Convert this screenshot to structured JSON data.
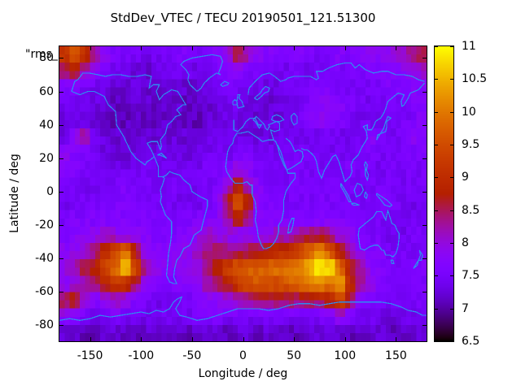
{
  "title": "StdDev_VTEC / TECU 20190501_121.51300",
  "overlay_label": "\"rms_",
  "axes": {
    "x": {
      "label": "Longitude / deg",
      "ticks": [
        -150,
        -100,
        -50,
        0,
        50,
        100,
        150
      ],
      "range": [
        -180,
        180
      ]
    },
    "y": {
      "label": "Latitude / deg",
      "ticks": [
        80,
        60,
        40,
        20,
        0,
        -20,
        -40,
        -60,
        -80
      ],
      "range": [
        -90,
        90
      ]
    }
  },
  "colorbar": {
    "min": 6.5,
    "max": 11,
    "ticks": [
      11,
      10.5,
      10,
      9.5,
      9,
      8.5,
      8,
      7.5,
      7,
      6.5
    ],
    "palette": "gnuplot default pm3d (black-blue-purple-red-orange-yellow)"
  },
  "colors": {
    "background": "#ffffff",
    "coastline": "#2e8cf0",
    "border": "#000000",
    "text": "#000000"
  },
  "map_overlay": "world-coastlines",
  "chart_data": {
    "type": "heatmap",
    "title": "StdDev_VTEC / TECU 20190501_121.51300",
    "xlabel": "Longitude / deg",
    "ylabel": "Latitude / deg",
    "xlim": [
      -180,
      180
    ],
    "ylim": [
      -90,
      90
    ],
    "zlim": [
      6.5,
      11
    ],
    "units": "TECU",
    "lon_centers": [
      -175,
      -165,
      -155,
      -145,
      -135,
      -125,
      -115,
      -105,
      -95,
      -85,
      -75,
      -65,
      -55,
      -45,
      -35,
      -25,
      -15,
      -5,
      5,
      15,
      25,
      35,
      45,
      55,
      65,
      75,
      85,
      95,
      105,
      115,
      125,
      135,
      145,
      155,
      165,
      175
    ],
    "lat_centers": [
      85,
      75,
      65,
      55,
      45,
      35,
      25,
      15,
      5,
      -5,
      -15,
      -25,
      -35,
      -45,
      -55,
      -65,
      -75,
      -85
    ],
    "values": [
      [
        9.2,
        9.6,
        9.0,
        8.2,
        7.8,
        7.6,
        7.5,
        7.5,
        7.4,
        7.4,
        7.5,
        7.6,
        7.6,
        7.5,
        7.6,
        7.7,
        8.0,
        8.7,
        8.2,
        7.8,
        7.7,
        7.6,
        7.6,
        7.7,
        7.6,
        7.5,
        7.6,
        7.7,
        7.6,
        7.7,
        7.8,
        7.8,
        7.9,
        8.0,
        8.4,
        8.5
      ],
      [
        8.5,
        8.7,
        8.2,
        7.8,
        7.5,
        7.4,
        7.3,
        7.3,
        7.2,
        7.3,
        7.3,
        7.4,
        7.4,
        7.3,
        7.4,
        7.5,
        7.6,
        7.8,
        7.6,
        7.5,
        7.5,
        7.4,
        7.4,
        7.5,
        7.4,
        7.4,
        7.5,
        7.5,
        7.5,
        7.6,
        7.6,
        7.6,
        7.7,
        7.8,
        8.0,
        8.1
      ],
      [
        7.6,
        7.7,
        7.5,
        7.4,
        7.3,
        7.2,
        7.2,
        7.3,
        7.2,
        7.2,
        7.3,
        7.3,
        7.2,
        7.2,
        7.3,
        7.4,
        7.5,
        7.5,
        7.4,
        7.4,
        7.3,
        7.3,
        7.4,
        7.4,
        7.5,
        7.6,
        7.6,
        7.5,
        7.4,
        7.4,
        7.5,
        7.5,
        7.6,
        7.6,
        7.7,
        7.7
      ],
      [
        7.4,
        7.4,
        7.3,
        7.3,
        7.2,
        7.1,
        7.1,
        7.2,
        7.2,
        7.1,
        7.2,
        7.2,
        7.1,
        7.2,
        7.2,
        7.3,
        7.4,
        7.4,
        7.3,
        7.3,
        7.2,
        7.3,
        7.3,
        7.4,
        7.6,
        7.8,
        7.8,
        7.7,
        7.6,
        7.5,
        7.4,
        7.4,
        7.5,
        7.5,
        7.6,
        7.6
      ],
      [
        7.3,
        7.3,
        7.2,
        7.2,
        7.1,
        7.1,
        7.1,
        7.2,
        7.1,
        7.1,
        7.2,
        7.2,
        7.1,
        7.1,
        7.2,
        7.3,
        7.3,
        7.3,
        7.3,
        7.2,
        7.2,
        7.3,
        7.4,
        7.5,
        7.7,
        7.8,
        7.7,
        7.6,
        7.5,
        7.4,
        7.4,
        7.4,
        7.4,
        7.5,
        7.5,
        7.7
      ],
      [
        7.3,
        7.8,
        8.4,
        7.5,
        7.3,
        7.2,
        7.2,
        7.2,
        7.2,
        7.2,
        7.2,
        7.3,
        7.2,
        7.2,
        7.3,
        7.3,
        7.3,
        7.3,
        7.3,
        7.3,
        7.3,
        7.3,
        7.4,
        7.4,
        7.4,
        7.4,
        7.4,
        7.4,
        7.4,
        7.4,
        7.8,
        7.5,
        7.4,
        7.5,
        7.9,
        7.6
      ],
      [
        7.9,
        7.7,
        7.5,
        7.4,
        7.3,
        7.3,
        7.2,
        7.3,
        7.3,
        7.3,
        7.3,
        7.3,
        7.3,
        7.3,
        7.4,
        7.4,
        7.4,
        7.5,
        7.5,
        7.4,
        7.4,
        7.4,
        7.4,
        7.5,
        7.5,
        7.5,
        7.4,
        7.4,
        7.4,
        7.5,
        7.5,
        7.5,
        7.5,
        7.5,
        7.5,
        7.6
      ],
      [
        7.7,
        7.6,
        7.5,
        7.4,
        7.4,
        7.3,
        7.4,
        7.4,
        7.5,
        7.4,
        7.4,
        7.4,
        7.4,
        7.4,
        7.5,
        7.5,
        7.6,
        8.0,
        7.8,
        7.5,
        7.4,
        7.4,
        7.5,
        7.5,
        7.5,
        7.4,
        7.5,
        7.5,
        7.6,
        7.5,
        7.5,
        7.4,
        7.5,
        7.5,
        7.5,
        7.5
      ],
      [
        7.5,
        7.5,
        7.4,
        7.4,
        7.5,
        7.5,
        7.6,
        7.5,
        7.5,
        7.4,
        7.4,
        7.5,
        7.4,
        7.4,
        7.5,
        7.6,
        8.0,
        8.8,
        8.2,
        7.7,
        7.5,
        7.5,
        7.5,
        7.6,
        7.5,
        7.5,
        7.6,
        7.5,
        7.5,
        7.4,
        7.5,
        7.5,
        7.5,
        7.4,
        7.5,
        7.5
      ],
      [
        7.4,
        7.4,
        7.5,
        7.5,
        7.5,
        7.6,
        7.6,
        7.6,
        7.5,
        7.5,
        7.4,
        7.4,
        7.4,
        7.4,
        7.5,
        7.7,
        8.6,
        9.6,
        8.8,
        7.8,
        7.6,
        7.5,
        7.5,
        7.5,
        7.5,
        7.6,
        7.5,
        7.5,
        7.5,
        7.4,
        7.5,
        7.6,
        7.5,
        7.5,
        7.4,
        7.4
      ],
      [
        7.5,
        7.6,
        7.6,
        7.6,
        7.6,
        7.7,
        7.6,
        7.6,
        7.6,
        7.5,
        7.5,
        7.5,
        7.5,
        7.6,
        7.6,
        7.7,
        8.2,
        8.9,
        8.3,
        7.7,
        7.6,
        7.6,
        7.6,
        7.7,
        7.6,
        7.6,
        7.6,
        7.6,
        7.6,
        7.5,
        7.5,
        7.5,
        7.4,
        7.4,
        7.4,
        7.5
      ],
      [
        7.6,
        7.7,
        7.8,
        7.9,
        8.0,
        7.9,
        7.8,
        7.8,
        7.7,
        7.6,
        7.6,
        7.6,
        7.7,
        7.9,
        8.2,
        8.0,
        7.9,
        7.8,
        7.8,
        7.8,
        7.9,
        8.1,
        8.2,
        8.3,
        8.4,
        8.5,
        8.3,
        7.9,
        7.8,
        7.6,
        7.5,
        7.5,
        7.4,
        7.4,
        7.5,
        7.5
      ],
      [
        7.8,
        7.9,
        8.0,
        8.4,
        9.0,
        9.4,
        10.0,
        8.6,
        7.9,
        7.8,
        7.7,
        7.7,
        7.8,
        8.1,
        8.4,
        8.4,
        8.3,
        8.4,
        8.5,
        8.6,
        8.8,
        8.9,
        9.0,
        9.3,
        9.8,
        10.2,
        9.6,
        8.8,
        8.2,
        7.8,
        7.6,
        7.6,
        7.5,
        7.5,
        7.5,
        7.5
      ],
      [
        8.0,
        8.2,
        8.6,
        8.8,
        9.4,
        9.8,
        10.8,
        9.4,
        8.2,
        7.9,
        7.8,
        7.8,
        7.9,
        8.0,
        8.3,
        8.8,
        9.3,
        9.6,
        9.7,
        9.8,
        9.8,
        9.9,
        10.0,
        10.1,
        10.4,
        10.9,
        10.9,
        9.9,
        8.8,
        8.2,
        7.8,
        7.7,
        7.6,
        7.5,
        7.5,
        7.6
      ],
      [
        7.8,
        8.0,
        8.2,
        8.4,
        8.9,
        9.2,
        9.0,
        8.5,
        7.9,
        7.7,
        7.6,
        7.6,
        7.7,
        7.9,
        8.2,
        8.5,
        8.8,
        9.2,
        9.6,
        9.7,
        9.6,
        9.5,
        9.7,
        9.9,
        10.0,
        10.3,
        9.9,
        10.4,
        8.9,
        8.3,
        7.9,
        7.6,
        7.5,
        7.5,
        7.5,
        7.5
      ],
      [
        8.6,
        8.8,
        8.0,
        7.7,
        7.9,
        8.1,
        7.9,
        7.6,
        7.5,
        7.4,
        7.4,
        7.5,
        7.5,
        7.6,
        7.7,
        7.8,
        8.0,
        8.2,
        8.3,
        8.4,
        8.5,
        8.6,
        8.5,
        8.4,
        8.5,
        8.6,
        8.8,
        9.4,
        8.6,
        7.8,
        7.6,
        7.5,
        7.4,
        7.4,
        7.5,
        7.5
      ],
      [
        7.8,
        7.7,
        7.5,
        7.4,
        7.5,
        7.6,
        7.5,
        7.4,
        7.4,
        7.4,
        7.5,
        7.5,
        7.4,
        7.5,
        7.6,
        7.6,
        7.5,
        7.5,
        7.4,
        7.4,
        7.5,
        7.5,
        7.4,
        7.4,
        7.4,
        7.5,
        7.6,
        8.0,
        7.6,
        7.4,
        7.4,
        7.3,
        7.3,
        7.3,
        7.4,
        7.4
      ],
      [
        7.2,
        7.2,
        7.1,
        7.1,
        7.2,
        7.2,
        7.1,
        7.1,
        7.2,
        7.2,
        7.2,
        7.1,
        7.1,
        7.2,
        7.2,
        7.2,
        7.1,
        7.2,
        7.2,
        7.1,
        7.2,
        7.2,
        7.1,
        7.1,
        7.2,
        7.2,
        7.2,
        7.2,
        7.1,
        7.1,
        7.2,
        7.2,
        7.1,
        7.1,
        7.2,
        7.2
      ]
    ]
  }
}
